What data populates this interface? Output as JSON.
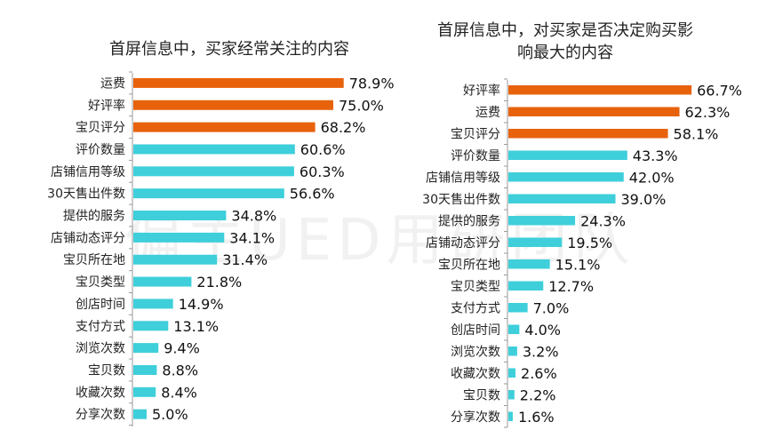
{
  "watermark": "偏主UED用研团队",
  "colors": {
    "highlight": "#E8620C",
    "normal": "#3ECFDB",
    "axis": "#999999"
  },
  "chart_data": [
    {
      "type": "bar",
      "orientation": "horizontal",
      "title": "首屏信息中，买家经常关注的内容",
      "categories": [
        "运费",
        "好评率",
        "宝贝评分",
        "评价数量",
        "店铺信用等级",
        "30天售出件数",
        "提供的服务",
        "店铺动态评分",
        "宝贝所在地",
        "宝贝类型",
        "创店时间",
        "支付方式",
        "浏览次数",
        "宝贝数",
        "收藏次数",
        "分享次数"
      ],
      "values": [
        78.9,
        75.0,
        68.2,
        60.6,
        60.3,
        56.6,
        34.8,
        34.1,
        31.4,
        21.8,
        14.9,
        13.1,
        9.4,
        8.8,
        8.4,
        5.0
      ],
      "labels": [
        "78.9%",
        "75.0%",
        "68.2%",
        "60.6%",
        "60.3%",
        "56.6%",
        "34.8%",
        "34.1%",
        "31.4%",
        "21.8%",
        "14.9%",
        "13.1%",
        "9.4%",
        "8.8%",
        "8.4%",
        "5.0%"
      ],
      "highlight_top": 3,
      "xlim": [
        0,
        100
      ],
      "grid": false
    },
    {
      "type": "bar",
      "orientation": "horizontal",
      "title": [
        "首屏信息中，对买家是否决定购买影",
        "响最大的内容"
      ],
      "categories": [
        "好评率",
        "运费",
        "宝贝评分",
        "评价数量",
        "店铺信用等级",
        "30天售出件数",
        "提供的服务",
        "店铺动态评分",
        "宝贝所在地",
        "宝贝类型",
        "支付方式",
        "创店时间",
        "浏览次数",
        "收藏次数",
        "宝贝数",
        "分享次数"
      ],
      "values": [
        66.7,
        62.3,
        58.1,
        43.3,
        42.0,
        39.0,
        24.3,
        19.5,
        15.1,
        12.7,
        7.0,
        4.0,
        3.2,
        2.6,
        2.2,
        1.6
      ],
      "labels": [
        "66.7%",
        "62.3%",
        "58.1%",
        "43.3%",
        "42.0%",
        "39.0%",
        "24.3%",
        "19.5%",
        "15.1%",
        "12.7%",
        "7.0%",
        "4.0%",
        "3.2%",
        "2.6%",
        "2.2%",
        "1.6%"
      ],
      "highlight_top": 3,
      "xlim": [
        0,
        100
      ],
      "grid": false
    }
  ]
}
